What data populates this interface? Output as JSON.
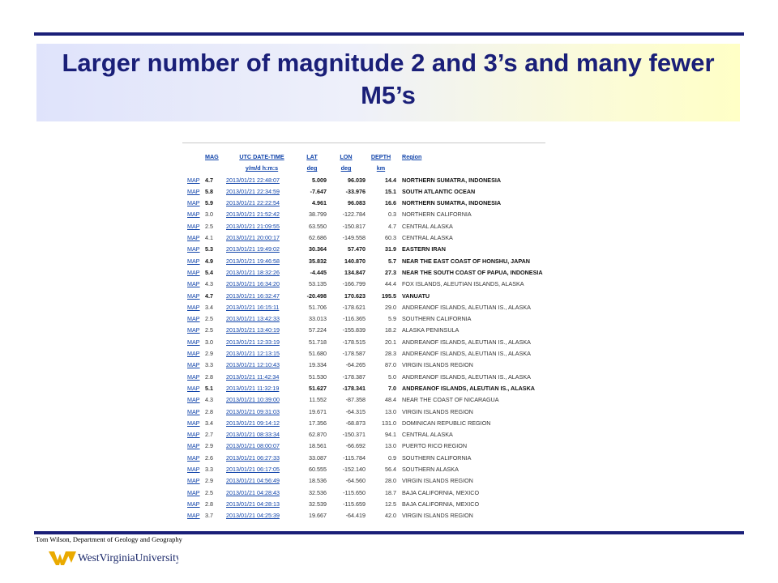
{
  "slide": {
    "title": "Larger number of magnitude 2 and 3’s and many fewer M5’s",
    "footer": "Tom Wilson, Department of Geology and Geography",
    "logo_text": "WestVirginiaUniversity."
  },
  "colors": {
    "title": "#1a1f78",
    "rule": "#1a1f78",
    "link": "#1144aa",
    "logo_gold": "#eaaa00"
  },
  "table": {
    "headers": {
      "mag": "MAG",
      "date_1": "UTC DATE-TIME",
      "date_2": "y/m/d h:m:s",
      "lat_1": "LAT",
      "lat_2": "deg",
      "lon_1": "LON",
      "lon_2": "deg",
      "depth_1": "DEPTH",
      "depth_2": "km",
      "region": "Region"
    },
    "rows": [
      {
        "map": "MAP",
        "mag": "4.7",
        "date": "2013/01/21 22:48:07",
        "lat": "5.009",
        "lon": "96.039",
        "depth": "14.4",
        "region": "NORTHERN SUMATRA, INDONESIA",
        "bold": true
      },
      {
        "map": "MAP",
        "mag": "5.8",
        "date": "2013/01/21 22:34:59",
        "lat": "-7.647",
        "lon": "-33.976",
        "depth": "15.1",
        "region": "SOUTH ATLANTIC OCEAN",
        "bold": true
      },
      {
        "map": "MAP",
        "mag": "5.9",
        "date": "2013/01/21 22:22:54",
        "lat": "4.961",
        "lon": "96.083",
        "depth": "16.6",
        "region": "NORTHERN SUMATRA, INDONESIA",
        "bold": true
      },
      {
        "map": "MAP",
        "mag": "3.0",
        "date": "2013/01/21 21:52:42",
        "lat": "38.799",
        "lon": "-122.784",
        "depth": "0.3",
        "region": "NORTHERN CALIFORNIA",
        "bold": false
      },
      {
        "map": "MAP",
        "mag": "2.5",
        "date": "2013/01/21 21:09:55",
        "lat": "63.550",
        "lon": "-150.817",
        "depth": "4.7",
        "region": "CENTRAL ALASKA",
        "bold": false
      },
      {
        "map": "MAP",
        "mag": "4.1",
        "date": "2013/01/21 20:00:17",
        "lat": "62.686",
        "lon": "-149.558",
        "depth": "60.3",
        "region": "CENTRAL ALASKA",
        "bold": false
      },
      {
        "map": "MAP",
        "mag": "5.3",
        "date": "2013/01/21 19:49:02",
        "lat": "30.364",
        "lon": "57.470",
        "depth": "31.9",
        "region": "EASTERN IRAN",
        "bold": true
      },
      {
        "map": "MAP",
        "mag": "4.9",
        "date": "2013/01/21 19:46:58",
        "lat": "35.832",
        "lon": "140.870",
        "depth": "5.7",
        "region": "NEAR THE EAST COAST OF HONSHU, JAPAN",
        "bold": true
      },
      {
        "map": "MAP",
        "mag": "5.4",
        "date": "2013/01/21 18:32:26",
        "lat": "-4.445",
        "lon": "134.847",
        "depth": "27.3",
        "region": "NEAR THE SOUTH COAST OF PAPUA, INDONESIA",
        "bold": true
      },
      {
        "map": "MAP",
        "mag": "4.3",
        "date": "2013/01/21 16:34:20",
        "lat": "53.135",
        "lon": "-166.799",
        "depth": "44.4",
        "region": "FOX ISLANDS, ALEUTIAN ISLANDS, ALASKA",
        "bold": false
      },
      {
        "map": "MAP",
        "mag": "4.7",
        "date": "2013/01/21 16:32:47",
        "lat": "-20.498",
        "lon": "170.623",
        "depth": "195.5",
        "region": "VANUATU",
        "bold": true
      },
      {
        "map": "MAP",
        "mag": "3.4",
        "date": "2013/01/21 16:15:11",
        "lat": "51.706",
        "lon": "-178.621",
        "depth": "29.0",
        "region": "ANDREANOF ISLANDS, ALEUTIAN IS., ALASKA",
        "bold": false
      },
      {
        "map": "MAP",
        "mag": "2.5",
        "date": "2013/01/21 13:42:33",
        "lat": "33.013",
        "lon": "-116.365",
        "depth": "5.9",
        "region": "SOUTHERN CALIFORNIA",
        "bold": false
      },
      {
        "map": "MAP",
        "mag": "2.5",
        "date": "2013/01/21 13:40:19",
        "lat": "57.224",
        "lon": "-155.839",
        "depth": "18.2",
        "region": "ALASKA PENINSULA",
        "bold": false
      },
      {
        "map": "MAP",
        "mag": "3.0",
        "date": "2013/01/21 12:33:19",
        "lat": "51.718",
        "lon": "-178.515",
        "depth": "20.1",
        "region": "ANDREANOF ISLANDS, ALEUTIAN IS., ALASKA",
        "bold": false
      },
      {
        "map": "MAP",
        "mag": "2.9",
        "date": "2013/01/21 12:13:15",
        "lat": "51.680",
        "lon": "-178.587",
        "depth": "28.3",
        "region": "ANDREANOF ISLANDS, ALEUTIAN IS., ALASKA",
        "bold": false
      },
      {
        "map": "MAP",
        "mag": "3.3",
        "date": "2013/01/21 12:10:43",
        "lat": "19.334",
        "lon": "-64.265",
        "depth": "87.0",
        "region": "VIRGIN ISLANDS REGION",
        "bold": false
      },
      {
        "map": "MAP",
        "mag": "2.8",
        "date": "2013/01/21 11:42:34",
        "lat": "51.530",
        "lon": "-178.387",
        "depth": "5.0",
        "region": "ANDREANOF ISLANDS, ALEUTIAN IS., ALASKA",
        "bold": false
      },
      {
        "map": "MAP",
        "mag": "5.1",
        "date": "2013/01/21 11:32:19",
        "lat": "51.627",
        "lon": "-178.341",
        "depth": "7.0",
        "region": "ANDREANOF ISLANDS, ALEUTIAN IS., ALASKA",
        "bold": true
      },
      {
        "map": "MAP",
        "mag": "4.3",
        "date": "2013/01/21 10:39:00",
        "lat": "11.552",
        "lon": "-87.358",
        "depth": "48.4",
        "region": "NEAR THE COAST OF NICARAGUA",
        "bold": false
      },
      {
        "map": "MAP",
        "mag": "2.8",
        "date": "2013/01/21 09:31:03",
        "lat": "19.671",
        "lon": "-64.315",
        "depth": "13.0",
        "region": "VIRGIN ISLANDS REGION",
        "bold": false
      },
      {
        "map": "MAP",
        "mag": "3.4",
        "date": "2013/01/21 09:14:12",
        "lat": "17.356",
        "lon": "-68.873",
        "depth": "131.0",
        "region": "DOMINICAN REPUBLIC REGION",
        "bold": false
      },
      {
        "map": "MAP",
        "mag": "2.7",
        "date": "2013/01/21 08:33:34",
        "lat": "62.870",
        "lon": "-150.371",
        "depth": "94.1",
        "region": "CENTRAL ALASKA",
        "bold": false
      },
      {
        "map": "MAP",
        "mag": "2.9",
        "date": "2013/01/21 08:00:07",
        "lat": "18.561",
        "lon": "-66.692",
        "depth": "13.0",
        "region": "PUERTO RICO REGION",
        "bold": false
      },
      {
        "map": "MAP",
        "mag": "2.6",
        "date": "2013/01/21 06:27:33",
        "lat": "33.087",
        "lon": "-115.784",
        "depth": "0.9",
        "region": "SOUTHERN CALIFORNIA",
        "bold": false
      },
      {
        "map": "MAP",
        "mag": "3.3",
        "date": "2013/01/21 06:17:05",
        "lat": "60.555",
        "lon": "-152.140",
        "depth": "56.4",
        "region": "SOUTHERN ALASKA",
        "bold": false
      },
      {
        "map": "MAP",
        "mag": "2.9",
        "date": "2013/01/21 04:56:49",
        "lat": "18.536",
        "lon": "-64.560",
        "depth": "28.0",
        "region": "VIRGIN ISLANDS REGION",
        "bold": false
      },
      {
        "map": "MAP",
        "mag": "2.5",
        "date": "2013/01/21 04:28:43",
        "lat": "32.536",
        "lon": "-115.650",
        "depth": "18.7",
        "region": "BAJA CALIFORNIA, MEXICO",
        "bold": false
      },
      {
        "map": "MAP",
        "mag": "2.8",
        "date": "2013/01/21 04:28:13",
        "lat": "32.539",
        "lon": "-115.659",
        "depth": "12.5",
        "region": "BAJA CALIFORNIA, MEXICO",
        "bold": false
      },
      {
        "map": "MAP",
        "mag": "3.7",
        "date": "2013/01/21 04:25:39",
        "lat": "19.667",
        "lon": "-64.419",
        "depth": "42.0",
        "region": "VIRGIN ISLANDS REGION",
        "bold": false
      }
    ]
  }
}
